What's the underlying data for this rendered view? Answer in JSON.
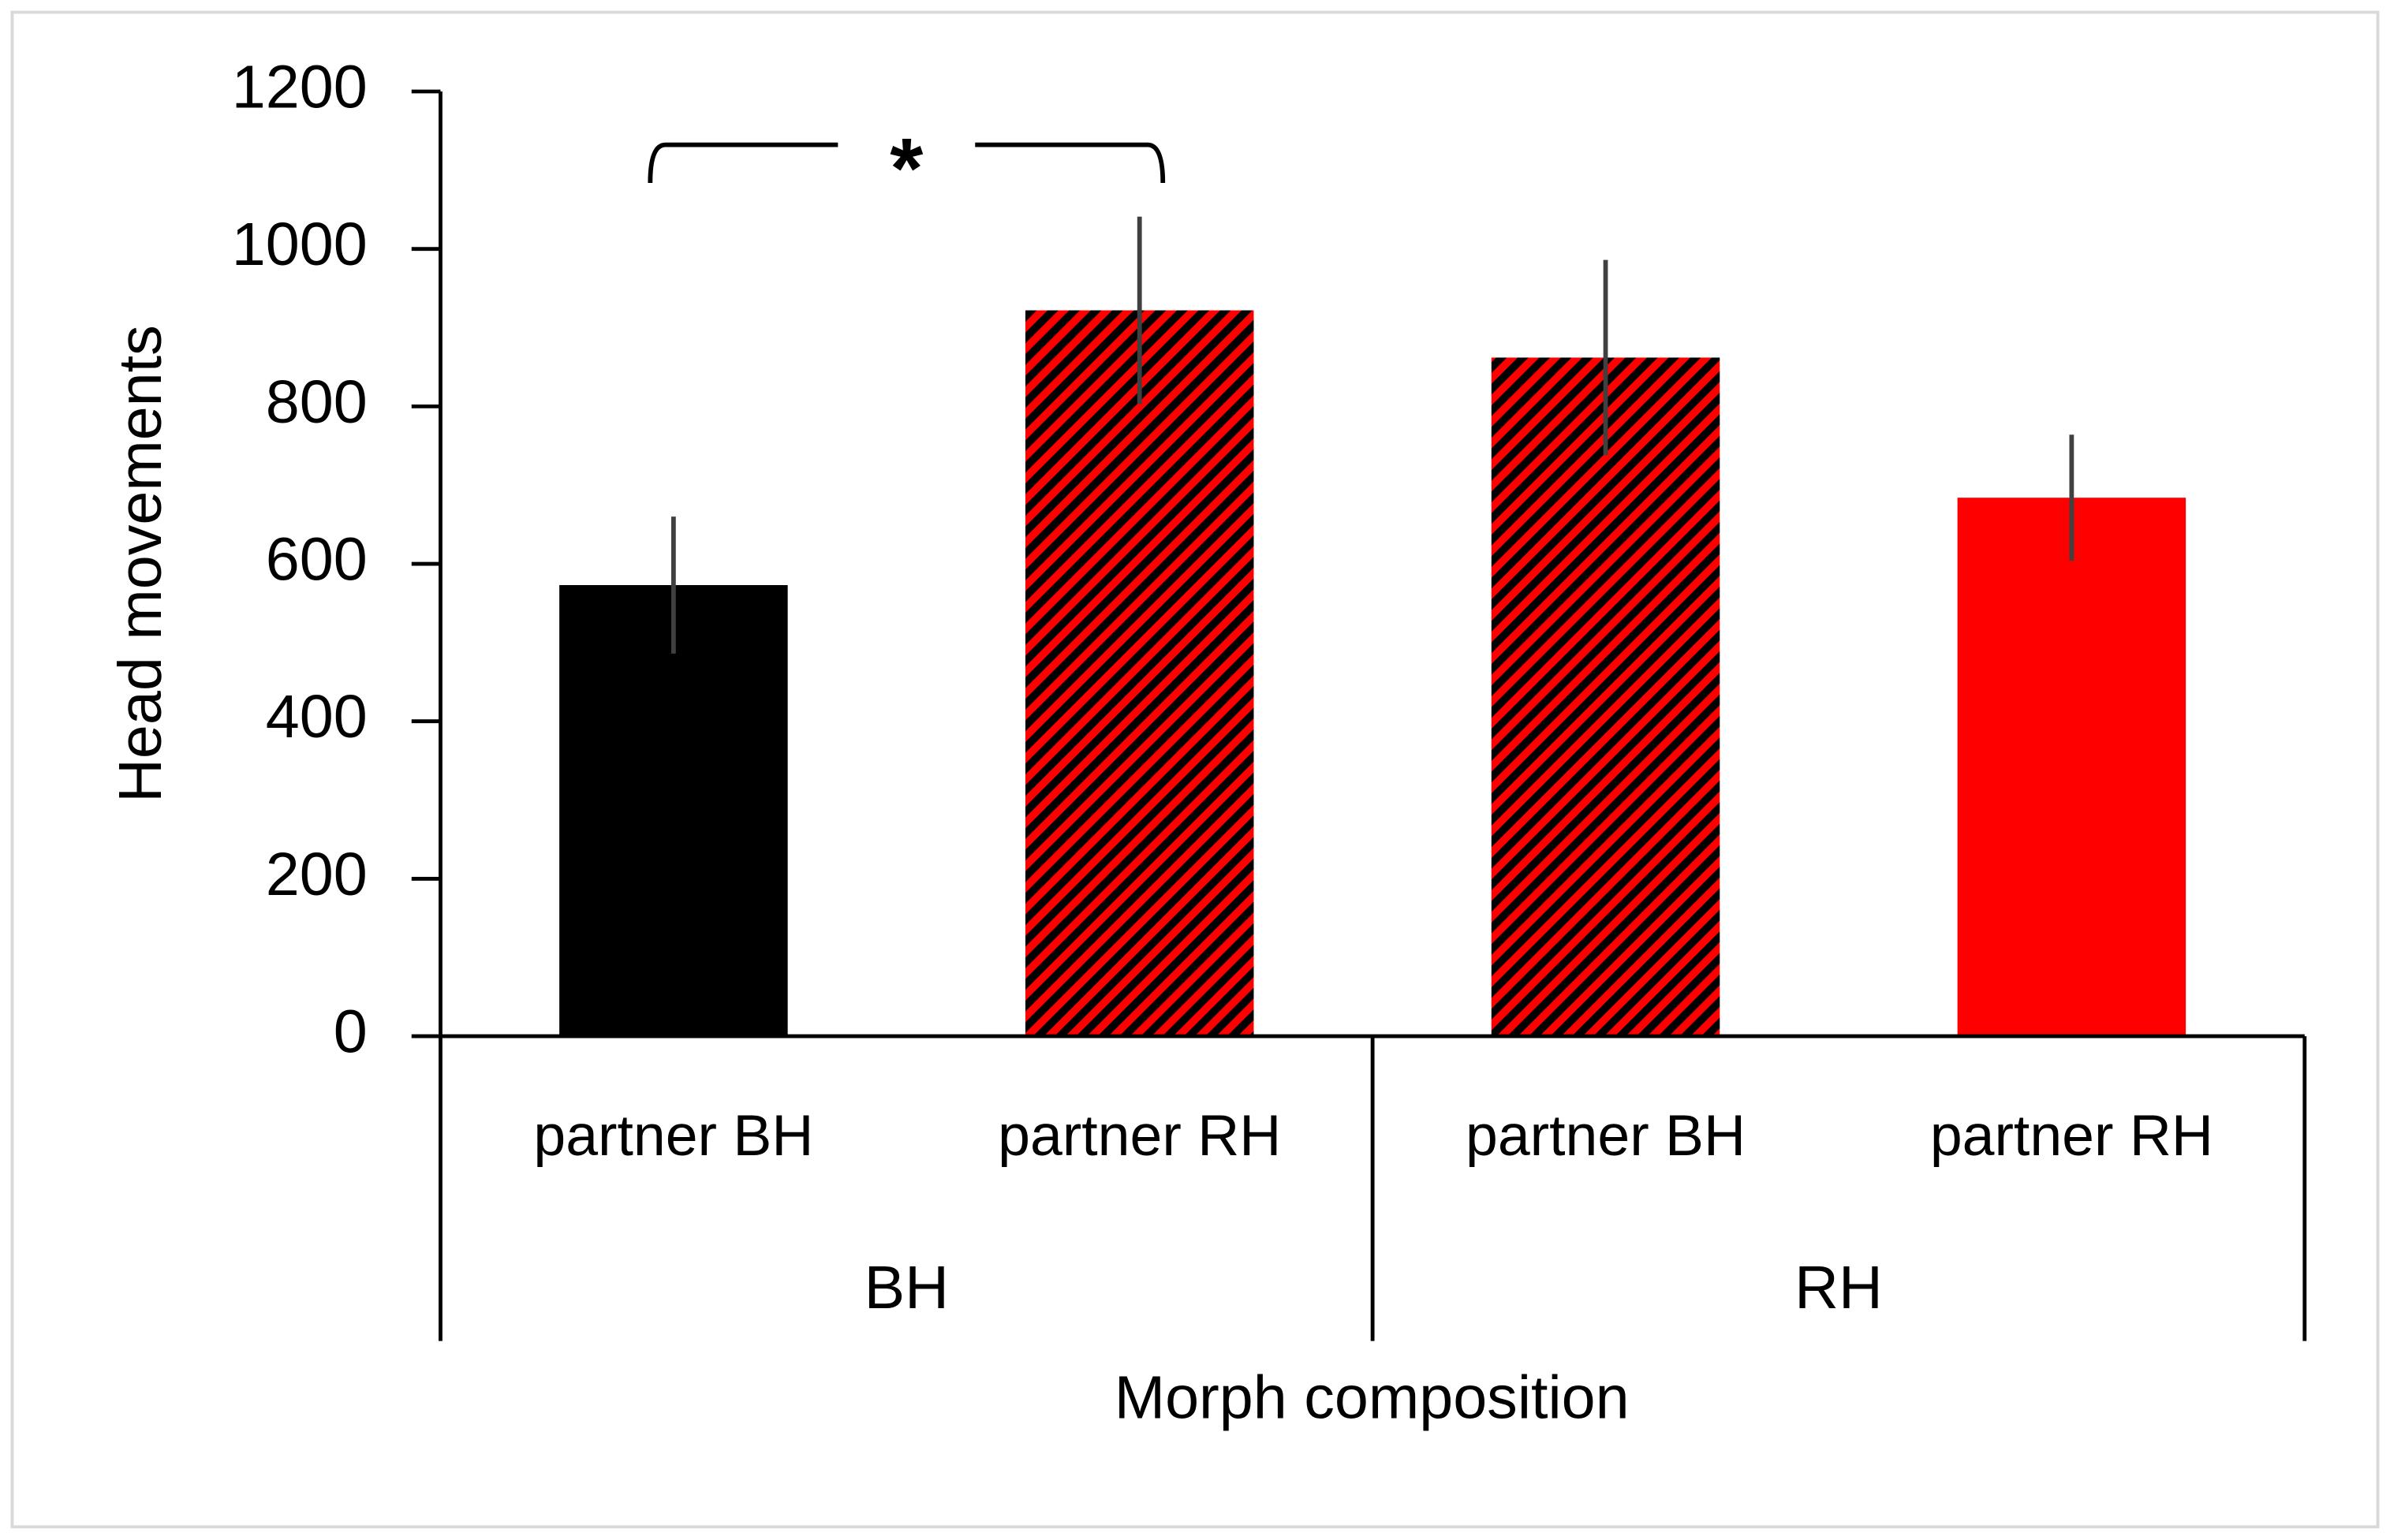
{
  "chart_data": {
    "type": "bar",
    "y_label": "Head movements",
    "x_label": "Morph composition",
    "groups": [
      {
        "name": "BH",
        "categories": [
          "partner BH",
          "partner RH"
        ]
      },
      {
        "name": "RH",
        "categories": [
          "partner BH",
          "partner RH"
        ]
      }
    ],
    "values": [
      573,
      922,
      862,
      684
    ],
    "errors": [
      87,
      119,
      124,
      80
    ],
    "colors": [
      "#000000",
      "#ff0000",
      "#ff0000",
      "#ff0000"
    ],
    "hatch": [
      false,
      true,
      true,
      false
    ],
    "hatch_color": "#000000",
    "error_color": "#404040",
    "ylim": [
      0,
      1200
    ],
    "yticks": [
      0,
      200,
      400,
      600,
      800,
      1000,
      1200
    ],
    "grid": false,
    "annotations": [
      {
        "text": "*",
        "between": [
          "partner BH",
          "partner RH"
        ]
      }
    ]
  }
}
